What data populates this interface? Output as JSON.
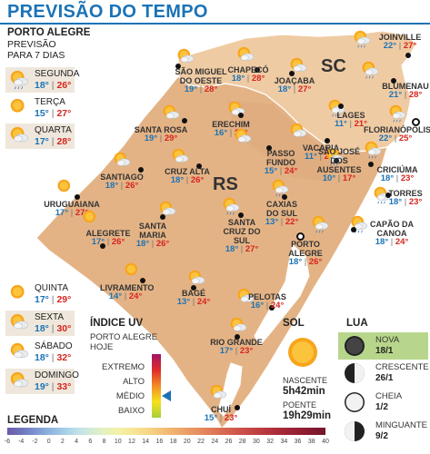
{
  "title": "PREVISÃO DO TEMPO",
  "porto_alegre": {
    "name": "PORTO ALEGRE",
    "sub1": "PREVISÃO",
    "sub2": "PARA 7 DIAS",
    "days": [
      {
        "name": "SEGUNDA",
        "min": "18°",
        "max": "26°",
        "icon": "sun-cloud-rain-icon",
        "highlight": true
      },
      {
        "name": "TERÇA",
        "min": "15°",
        "max": "27°",
        "icon": "sun-icon",
        "highlight": false
      },
      {
        "name": "QUARTA",
        "min": "17°",
        "max": "28°",
        "icon": "sun-cloud-icon",
        "highlight": true
      },
      {
        "name": "QUINTA",
        "min": "17°",
        "max": "29°",
        "icon": "sun-icon",
        "highlight": false
      },
      {
        "name": "SEXTA",
        "min": "18°",
        "max": "30°",
        "icon": "sun-cloud-icon",
        "highlight": true
      },
      {
        "name": "SÁBADO",
        "min": "18°",
        "max": "32°",
        "icon": "sun-cloud-icon",
        "highlight": false
      },
      {
        "name": "DOMINGO",
        "min": "19°",
        "max": "33°",
        "icon": "sun-cloud-icon",
        "highlight": true
      }
    ]
  },
  "state_labels": {
    "rs": "RS",
    "sc": "SC"
  },
  "cities": [
    {
      "name": "JOINVILLE",
      "min": "22°",
      "max": "27°",
      "icon": "sun-cloud-rain-icon"
    },
    {
      "name": "SÃO MIGUEL DO OESTE",
      "min": "19°",
      "max": "28°",
      "icon": "sun-cloud-icon"
    },
    {
      "name": "CHAPECÓ",
      "min": "18°",
      "max": "28°",
      "icon": "sun-cloud-icon"
    },
    {
      "name": "JOAÇABA",
      "min": "18°",
      "max": "27°",
      "icon": "sun-cloud-icon"
    },
    {
      "name": "BLUMENAU",
      "min": "21°",
      "max": "28°",
      "icon": "sun-cloud-rain-icon"
    },
    {
      "name": "SANTA ROSA",
      "min": "19°",
      "max": "29°",
      "icon": "sun-cloud-icon"
    },
    {
      "name": "ERECHIM",
      "min": "16°",
      "max": "28°",
      "icon": "sun-cloud-icon"
    },
    {
      "name": "LAGES",
      "min": "11°",
      "max": "21°",
      "icon": "sun-cloud-rain-icon"
    },
    {
      "name": "FLORIANÓPOLIS",
      "min": "22°",
      "max": "25°",
      "icon": "sun-cloud-rain-icon"
    },
    {
      "name": "PASSO FUNDO",
      "min": "15°",
      "max": "24°",
      "icon": "sun-cloud-icon"
    },
    {
      "name": "VACARIA",
      "min": "11°",
      "max": "22°",
      "icon": "sun-cloud-icon"
    },
    {
      "name": "CRUZ ALTA",
      "min": "18°",
      "max": "26°",
      "icon": "sun-cloud-icon"
    },
    {
      "name": "SANTIAGO",
      "min": "18°",
      "max": "26°",
      "icon": "sun-cloud-icon"
    },
    {
      "name": "SÃO JOSÉ DOS AUSENTES",
      "min": "10°",
      "max": "17°",
      "icon": "sun-cloud-rain-icon"
    },
    {
      "name": "CRICIÚMA",
      "min": "18°",
      "max": "23°",
      "icon": "sun-cloud-rain-icon"
    },
    {
      "name": "URUGUAIANA",
      "min": "17°",
      "max": "27°",
      "icon": "sun-icon"
    },
    {
      "name": "TORRES",
      "min": "18°",
      "max": "23°",
      "icon": "sun-cloud-rain-icon"
    },
    {
      "name": "CAXIAS DO SUL",
      "min": "13°",
      "max": "22°",
      "icon": "sun-cloud-rain-icon"
    },
    {
      "name": "SANTA MARIA",
      "min": "18°",
      "max": "26°",
      "icon": "sun-cloud-icon"
    },
    {
      "name": "SANTA CRUZ DO SUL",
      "min": "18°",
      "max": "27°",
      "icon": "sun-cloud-rain-icon"
    },
    {
      "name": "CAPÃO DA CANOA",
      "min": "18°",
      "max": "24°",
      "icon": "sun-cloud-rain-icon"
    },
    {
      "name": "ALEGRETE",
      "min": "17°",
      "max": "26°",
      "icon": "sun-icon"
    },
    {
      "name": "PORTO ALEGRE",
      "min": "18°",
      "max": "26°",
      "icon": "sun-cloud-rain-icon"
    },
    {
      "name": "LIVRAMENTO",
      "min": "14°",
      "max": "24°",
      "icon": "sun-icon"
    },
    {
      "name": "BAGÉ",
      "min": "13°",
      "max": "24°",
      "icon": "sun-cloud-icon"
    },
    {
      "name": "PELOTAS",
      "min": "16°",
      "max": "24°",
      "icon": "sun-cloud-icon"
    },
    {
      "name": "RIO GRANDE",
      "min": "17°",
      "max": "23°",
      "icon": "sun-cloud-icon"
    },
    {
      "name": "CHUÍ",
      "min": "15°",
      "max": "23°",
      "icon": "sun-cloud-icon"
    }
  ],
  "uv": {
    "title": "ÍNDICE UV",
    "sub1": "PORTO ALEGRE",
    "sub2": "HOJE",
    "levels": [
      "EXTREMO",
      "ALTO",
      "MÉDIO",
      "BAIXO"
    ],
    "current": "MÉDIO"
  },
  "sol": {
    "title": "SOL",
    "rise_label": "NASCENTE",
    "rise": "5h42min",
    "set_label": "POENTE",
    "set": "19h29min"
  },
  "lua": {
    "title": "LUA",
    "phases": [
      {
        "name": "NOVA",
        "date": "18/1",
        "icon": "new-moon-icon",
        "highlight": true
      },
      {
        "name": "CRESCENTE",
        "date": "26/1",
        "icon": "first-quarter-moon-icon",
        "highlight": false
      },
      {
        "name": "CHEIA",
        "date": "1/2",
        "icon": "full-moon-icon",
        "highlight": false
      },
      {
        "name": "MINGUANTE",
        "date": "9/2",
        "icon": "last-quarter-moon-icon",
        "highlight": false
      }
    ]
  },
  "legend": {
    "title": "LEGENDA",
    "ticks": [
      "-6",
      "-4",
      "-2",
      "0",
      "2",
      "4",
      "6",
      "8",
      "10",
      "12",
      "14",
      "16",
      "18",
      "20",
      "22",
      "24",
      "26",
      "28",
      "30",
      "32",
      "34",
      "36",
      "38",
      "40"
    ],
    "colors": [
      "#6a5aa8",
      "#6f74bd",
      "#7c93cf",
      "#8cb2dd",
      "#a2cbe6",
      "#bde0ea",
      "#d3ead8",
      "#e5f0bf",
      "#f2f2a8",
      "#f6e796",
      "#f7d986",
      "#f4c679",
      "#f0b16f",
      "#eb9d66",
      "#e58a5d",
      "#de7655",
      "#d5624e",
      "#cb5048",
      "#c04042",
      "#b3323d",
      "#a42838",
      "#952034",
      "#851a30",
      "#74152c"
    ]
  },
  "colors": {
    "title_blue": "#1b73b6",
    "min_blue": "#1b73b6",
    "max_red": "#d7241e",
    "map_rs": "#e6b687",
    "map_sc": "#edc9a2",
    "sea": "#ffffff"
  }
}
